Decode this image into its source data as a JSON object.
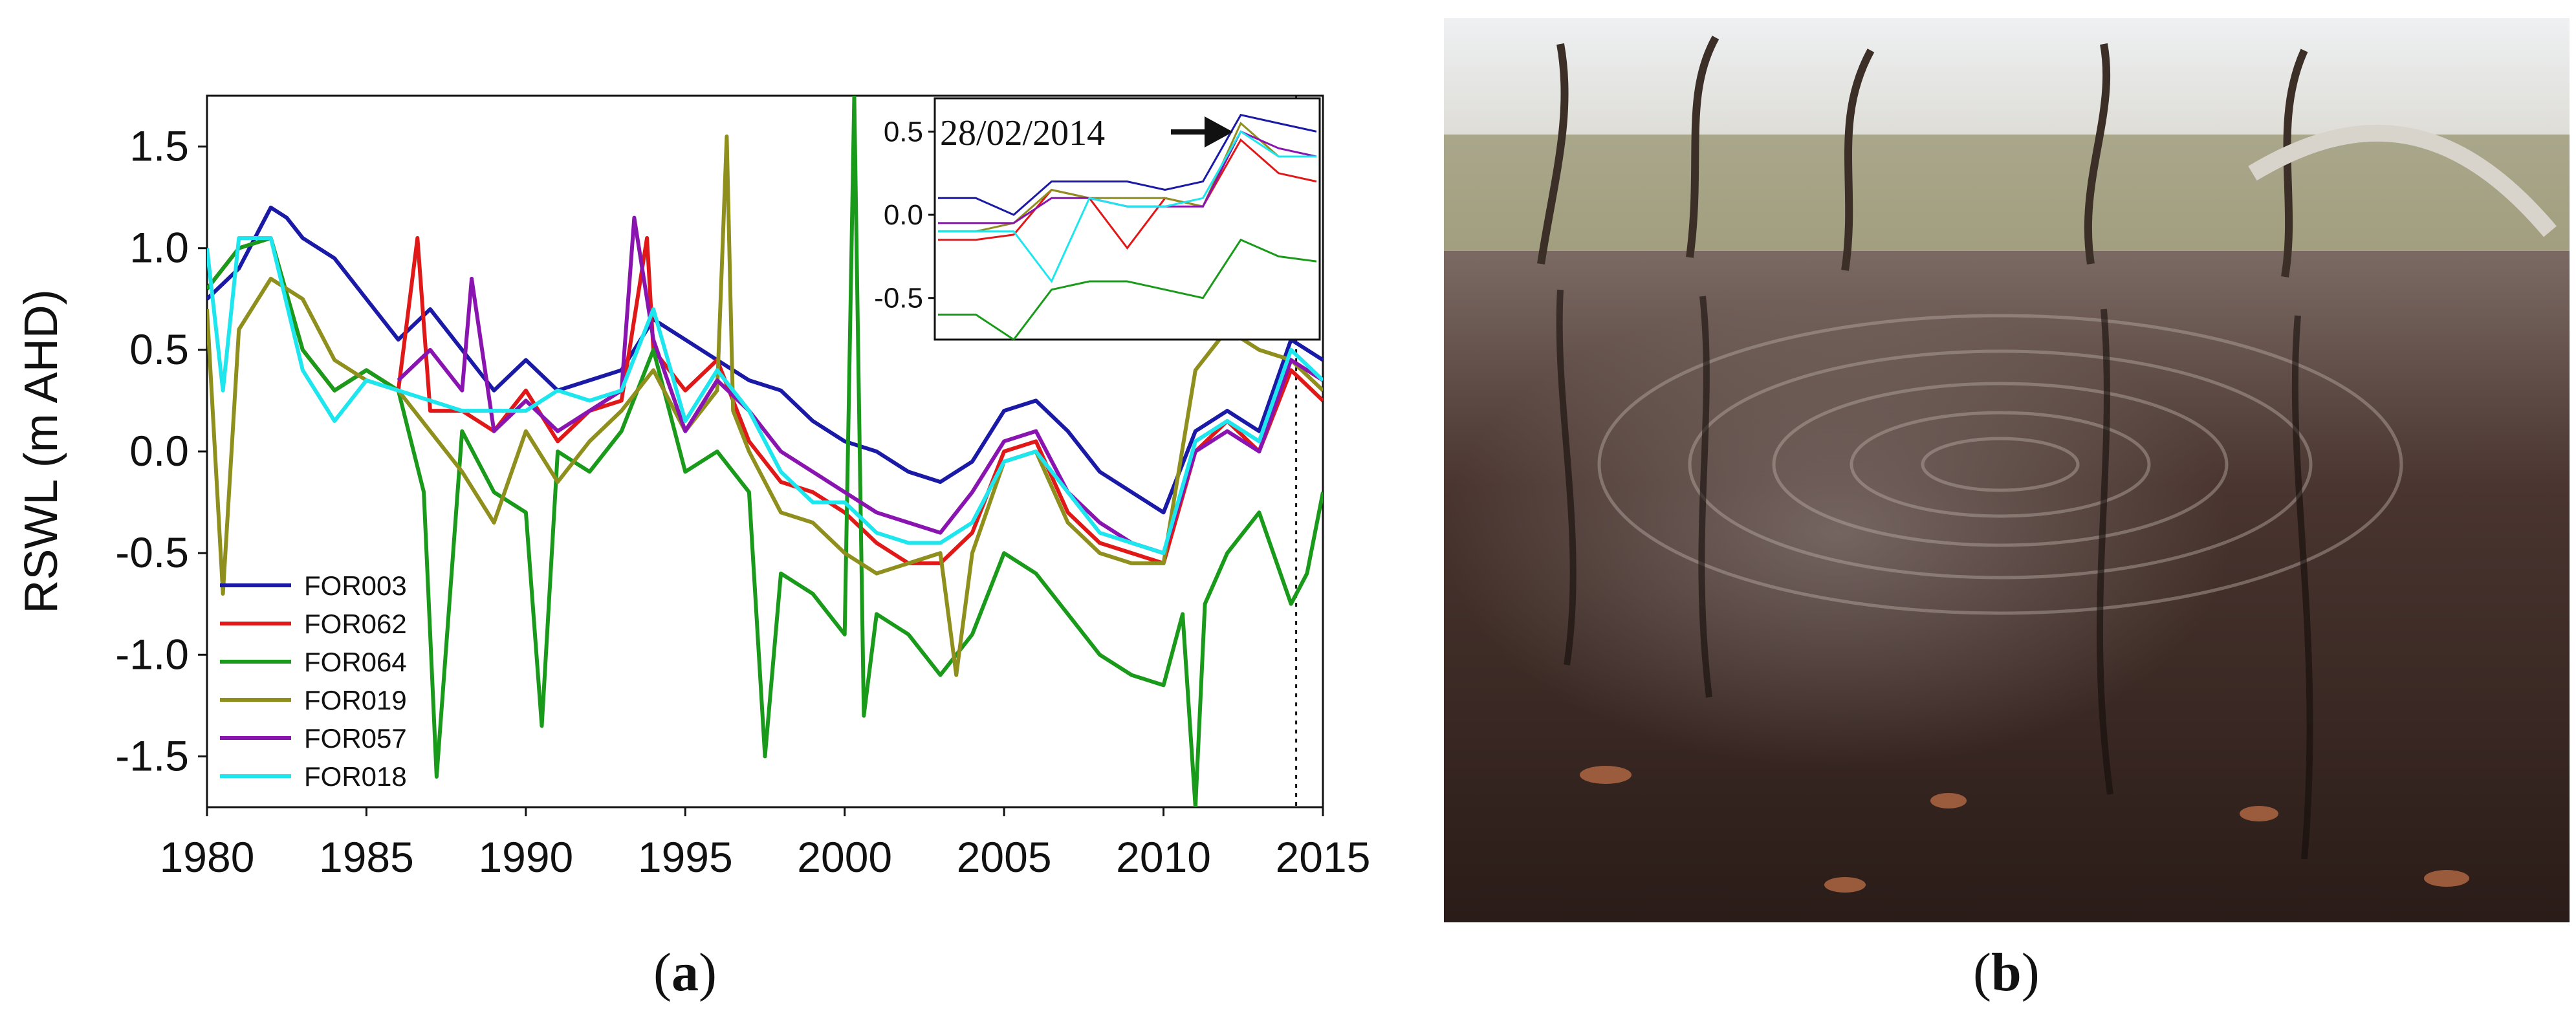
{
  "chart_data": {
    "type": "line",
    "ylabel": "RSWL (m AHD)",
    "xlabel": "",
    "xlim": [
      1980,
      2015
    ],
    "ylim": [
      -1.75,
      1.75
    ],
    "xticks": [
      1980,
      1985,
      1990,
      1995,
      2000,
      2005,
      2010,
      2015
    ],
    "yticks": [
      -1.5,
      -1.0,
      -0.5,
      0.0,
      0.5,
      1.0,
      1.5
    ],
    "ytick_labels": [
      "-1.5",
      "-1.0",
      "-0.5",
      "0.0",
      "0.5",
      "1.0",
      "1.5"
    ],
    "legend_position": "bottom-left",
    "grid": false,
    "reference_dates": [
      2014.16,
      2015.0
    ],
    "series": [
      {
        "name": "FOR003",
        "color": "#1a1aa6",
        "x": [
          1980,
          1981,
          1982,
          1982.5,
          1983,
          1984,
          1985,
          1986,
          1987,
          1988,
          1989,
          1990,
          1991,
          1992,
          1993,
          1994,
          1995,
          1996,
          1997,
          1998,
          1999,
          2000,
          2001,
          2002,
          2003,
          2004,
          2005,
          2006,
          2007,
          2008,
          2009,
          2010,
          2011,
          2012,
          2013,
          2014,
          2015
        ],
        "y": [
          0.75,
          0.9,
          1.2,
          1.15,
          1.05,
          0.95,
          0.75,
          0.55,
          0.7,
          0.5,
          0.3,
          0.45,
          0.3,
          0.35,
          0.4,
          0.65,
          0.55,
          0.45,
          0.35,
          0.3,
          0.15,
          0.05,
          0.0,
          -0.1,
          -0.15,
          -0.05,
          0.2,
          0.25,
          0.1,
          -0.1,
          -0.2,
          -0.3,
          0.1,
          0.2,
          0.1,
          0.55,
          0.45
        ]
      },
      {
        "name": "FOR062",
        "color": "#e01818",
        "x": [
          1980,
          1981,
          1982,
          1983,
          1984,
          1985,
          1986,
          1986.6,
          1987,
          1988,
          1989,
          1990,
          1991,
          1992,
          1993,
          1993.8,
          1994,
          1995,
          1996,
          1997,
          1998,
          1999,
          2000,
          2001,
          2002,
          2003,
          2004,
          2005,
          2006,
          2007,
          2008,
          2009,
          2010,
          2011,
          2012,
          2013,
          2014,
          2015
        ],
        "y": [
          0.8,
          1.0,
          1.05,
          0.5,
          0.3,
          0.4,
          0.3,
          1.05,
          0.2,
          0.2,
          0.1,
          0.3,
          0.05,
          0.2,
          0.25,
          1.05,
          0.5,
          0.3,
          0.45,
          0.05,
          -0.15,
          -0.2,
          -0.3,
          -0.45,
          -0.55,
          -0.55,
          -0.4,
          0.0,
          0.05,
          -0.3,
          -0.45,
          -0.5,
          -0.55,
          0.0,
          0.15,
          0.0,
          0.4,
          0.25
        ]
      },
      {
        "name": "FOR064",
        "color": "#1a9a1a",
        "x": [
          1980,
          1981,
          1982,
          1983,
          1984,
          1985,
          1986,
          1986.8,
          1987.2,
          1988,
          1989,
          1990,
          1990.5,
          1991,
          1992,
          1993,
          1994,
          1995,
          1996,
          1997,
          1997.5,
          1998,
          1999,
          2000,
          2000.3,
          2000.6,
          2001,
          2002,
          2003,
          2004,
          2005,
          2006,
          2007,
          2008,
          2009,
          2010,
          2010.6,
          2011,
          2011.3,
          2012,
          2013,
          2014,
          2014.5,
          2015
        ],
        "y": [
          0.8,
          1.0,
          1.05,
          0.5,
          0.3,
          0.4,
          0.3,
          -0.2,
          -1.6,
          0.1,
          -0.2,
          -0.3,
          -1.35,
          0.0,
          -0.1,
          0.1,
          0.5,
          -0.1,
          0.0,
          -0.2,
          -1.5,
          -0.6,
          -0.7,
          -0.9,
          1.75,
          -1.3,
          -0.8,
          -0.9,
          -1.1,
          -0.9,
          -0.5,
          -0.6,
          -0.8,
          -1.0,
          -1.1,
          -1.15,
          -0.8,
          -1.75,
          -0.75,
          -0.5,
          -0.3,
          -0.75,
          -0.6,
          -0.2
        ]
      },
      {
        "name": "FOR019",
        "color": "#8f8f1e",
        "x": [
          1980,
          1980.5,
          1981,
          1982,
          1983,
          1984,
          1985,
          1986,
          1987,
          1988,
          1989,
          1990,
          1991,
          1992,
          1993,
          1994,
          1995,
          1996,
          1996.3,
          1996.5,
          1997,
          1998,
          1999,
          2000,
          2001,
          2002,
          2003,
          2003.5,
          2004,
          2005,
          2006,
          2007,
          2008,
          2009,
          2010,
          2011,
          2012,
          2013,
          2014,
          2015
        ],
        "y": [
          0.7,
          -0.7,
          0.6,
          0.85,
          0.75,
          0.45,
          0.35,
          0.3,
          0.1,
          -0.1,
          -0.35,
          0.1,
          -0.15,
          0.05,
          0.2,
          0.4,
          0.1,
          0.3,
          1.55,
          0.2,
          0.0,
          -0.3,
          -0.35,
          -0.5,
          -0.6,
          -0.55,
          -0.5,
          -1.1,
          -0.5,
          -0.05,
          0.0,
          -0.35,
          -0.5,
          -0.55,
          -0.55,
          0.4,
          0.6,
          0.5,
          0.45,
          0.3
        ]
      },
      {
        "name": "FOR057",
        "color": "#8a14b0",
        "x": [
          1986,
          1987,
          1988,
          1988.3,
          1989,
          1990,
          1991,
          1992,
          1993,
          1993.4,
          1994,
          1995,
          1996,
          1997,
          1998,
          1999,
          2000,
          2001,
          2002,
          2003,
          2004,
          2005,
          2006,
          2007,
          2008,
          2009,
          2010,
          2011,
          2012,
          2013,
          2014,
          2015
        ],
        "y": [
          0.35,
          0.5,
          0.3,
          0.85,
          0.1,
          0.25,
          0.1,
          0.2,
          0.3,
          1.15,
          0.55,
          0.1,
          0.35,
          0.2,
          0.0,
          -0.1,
          -0.2,
          -0.3,
          -0.35,
          -0.4,
          -0.2,
          0.05,
          0.1,
          -0.2,
          -0.35,
          -0.45,
          -0.5,
          0.0,
          0.1,
          0.0,
          0.45,
          0.35
        ]
      },
      {
        "name": "FOR018",
        "color": "#1ee6ee",
        "x": [
          1980,
          1980.5,
          1981,
          1982,
          1983,
          1984,
          1985,
          1986,
          1987,
          1988,
          1989,
          1990,
          1991,
          1992,
          1993,
          1994,
          1995,
          1996,
          1997,
          1998,
          1999,
          2000,
          2001,
          2002,
          2003,
          2004,
          2005,
          2006,
          2007,
          2008,
          2009,
          2010,
          2011,
          2012,
          2013,
          2014,
          2015
        ],
        "y": [
          1.0,
          0.3,
          1.05,
          1.05,
          0.4,
          0.15,
          0.35,
          0.3,
          0.25,
          0.2,
          0.2,
          0.2,
          0.3,
          0.25,
          0.3,
          0.7,
          0.15,
          0.4,
          0.2,
          -0.1,
          -0.25,
          -0.25,
          -0.4,
          -0.45,
          -0.45,
          -0.35,
          -0.05,
          0.0,
          -0.2,
          -0.4,
          -0.45,
          -0.5,
          0.05,
          0.15,
          0.05,
          0.5,
          0.35
        ]
      }
    ],
    "inset": {
      "yticks": [
        -0.5,
        0.0,
        0.5
      ],
      "ytick_labels": [
        "-0.5",
        "0.0",
        "0.5"
      ],
      "ylim": [
        -0.75,
        0.7
      ],
      "x_positions": 11,
      "annotation": "28/02/2014",
      "series": [
        {
          "name": "FOR003",
          "color": "#1a1aa6",
          "y": [
            0.1,
            0.1,
            0.0,
            0.2,
            0.2,
            0.2,
            0.15,
            0.2,
            0.6,
            0.55,
            0.5
          ]
        },
        {
          "name": "FOR062",
          "color": "#e01818",
          "y": [
            -0.15,
            -0.15,
            -0.12,
            0.15,
            0.1,
            -0.2,
            0.1,
            0.05,
            0.45,
            0.25,
            0.2
          ]
        },
        {
          "name": "FOR064",
          "color": "#1a9a1a",
          "y": [
            -0.6,
            -0.6,
            -0.75,
            -0.45,
            -0.4,
            -0.4,
            -0.45,
            -0.5,
            -0.15,
            -0.25,
            -0.28
          ]
        },
        {
          "name": "FOR019",
          "color": "#8f8f1e",
          "y": [
            -0.1,
            -0.1,
            -0.05,
            0.15,
            0.1,
            0.1,
            0.1,
            0.05,
            0.55,
            0.35,
            0.35
          ]
        },
        {
          "name": "FOR057",
          "color": "#8a14b0",
          "y": [
            -0.05,
            -0.05,
            -0.05,
            0.1,
            0.1,
            0.05,
            0.05,
            0.05,
            0.5,
            0.4,
            0.35
          ]
        },
        {
          "name": "FOR018",
          "color": "#1ee6ee",
          "y": [
            -0.1,
            -0.1,
            -0.1,
            -0.4,
            0.1,
            0.05,
            0.05,
            0.1,
            0.5,
            0.35,
            0.35
          ]
        }
      ]
    }
  },
  "captions": {
    "a": {
      "open": "(",
      "letter": "a",
      "close": ")"
    },
    "b": {
      "open": "(",
      "letter": "b",
      "close": ")"
    }
  },
  "photo": {
    "water_color": "#3d2a24",
    "sky_color": "#e9ebee"
  }
}
